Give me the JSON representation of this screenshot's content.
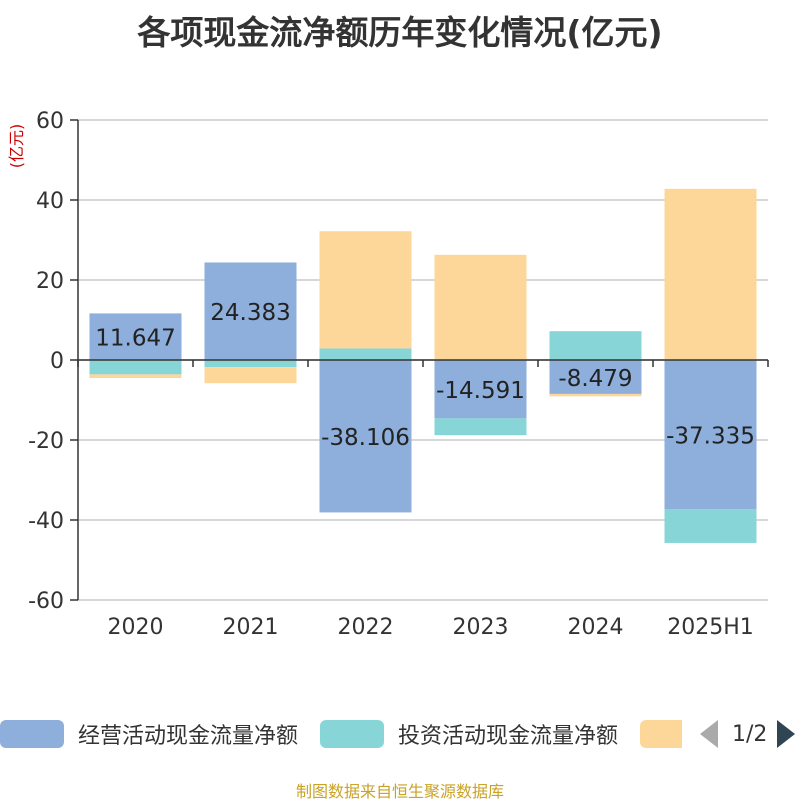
{
  "title": "各项现金流净额历年变化情况(亿元)",
  "source": "制图数据来自恒生聚源数据库",
  "legend_pager": "1/2",
  "colors": {
    "operating": "#8eaedb",
    "investing": "#88d5d8",
    "financing": "#fdd79a",
    "axis": "#333333",
    "grid": "#cccccc",
    "unit": "#cc0000"
  },
  "chart_data": {
    "type": "bar",
    "stacked": true,
    "categories": [
      "2020",
      "2021",
      "2022",
      "2023",
      "2024",
      "2025H1"
    ],
    "ylabel": "(亿元)",
    "ylim": [
      -60,
      60
    ],
    "yticks": [
      60,
      40,
      20,
      0,
      -20,
      -40,
      -60
    ],
    "grid": true,
    "legend_position": "bottom",
    "series": [
      {
        "name": "经营活动现金流量净额",
        "values": [
          11.647,
          24.383,
          -38.106,
          -14.591,
          -8.479,
          -37.335
        ],
        "labels": [
          "11.647",
          "24.383",
          "-38.106",
          "-14.591",
          "-8.479",
          "-37.335"
        ]
      },
      {
        "name": "投资活动现金流量净额",
        "values": [
          -3.6,
          -1.8,
          2.9,
          -4.2,
          7.2,
          -8.4
        ]
      },
      {
        "name": "",
        "values": [
          -0.9,
          -4.0,
          29.3,
          26.3,
          -0.6,
          42.8
        ]
      }
    ]
  }
}
